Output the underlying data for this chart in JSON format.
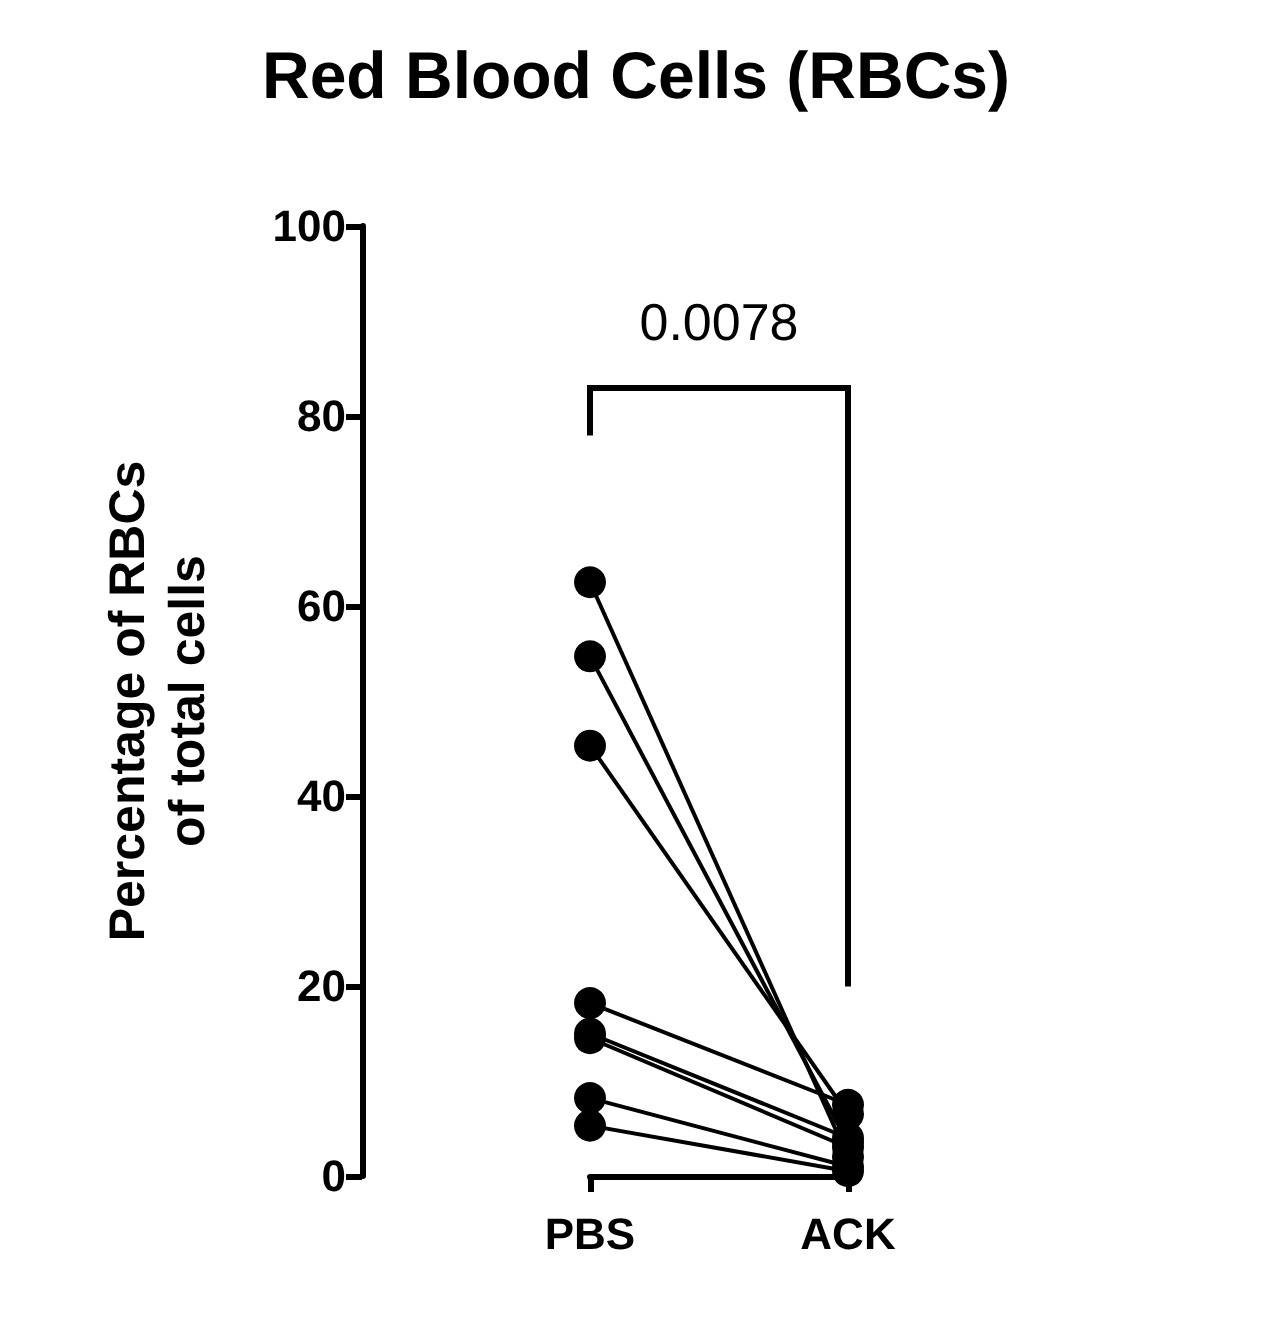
{
  "chart_data": {
    "type": "line",
    "title": "Red Blood Cells (RBCs)",
    "ylabel": "Percentage of RBCs\nof total cells",
    "categories": [
      "PBS",
      "ACK"
    ],
    "series": [
      {
        "color": "#000000",
        "values": [
          62.5,
          2.0
        ]
      },
      {
        "color": "#000000",
        "values": [
          54.7,
          3.5
        ]
      },
      {
        "color": "#000000",
        "values": [
          45.3,
          6.5
        ]
      },
      {
        "color": "#000000",
        "values": [
          18.2,
          7.5
        ]
      },
      {
        "color": "#000000",
        "values": [
          15.0,
          4.0
        ]
      },
      {
        "color": "#000000",
        "values": [
          14.5,
          3.0
        ]
      },
      {
        "color": "#000000",
        "values": [
          8.2,
          1.0
        ]
      },
      {
        "color": "#000000",
        "values": [
          5.3,
          0.5
        ]
      }
    ],
    "ylim": [
      0,
      100
    ],
    "yticks": [
      0,
      20,
      40,
      60,
      80,
      100
    ],
    "marker": "circle",
    "line_style": "solid",
    "grid": false,
    "annotations": [
      "0.0078"
    ]
  }
}
